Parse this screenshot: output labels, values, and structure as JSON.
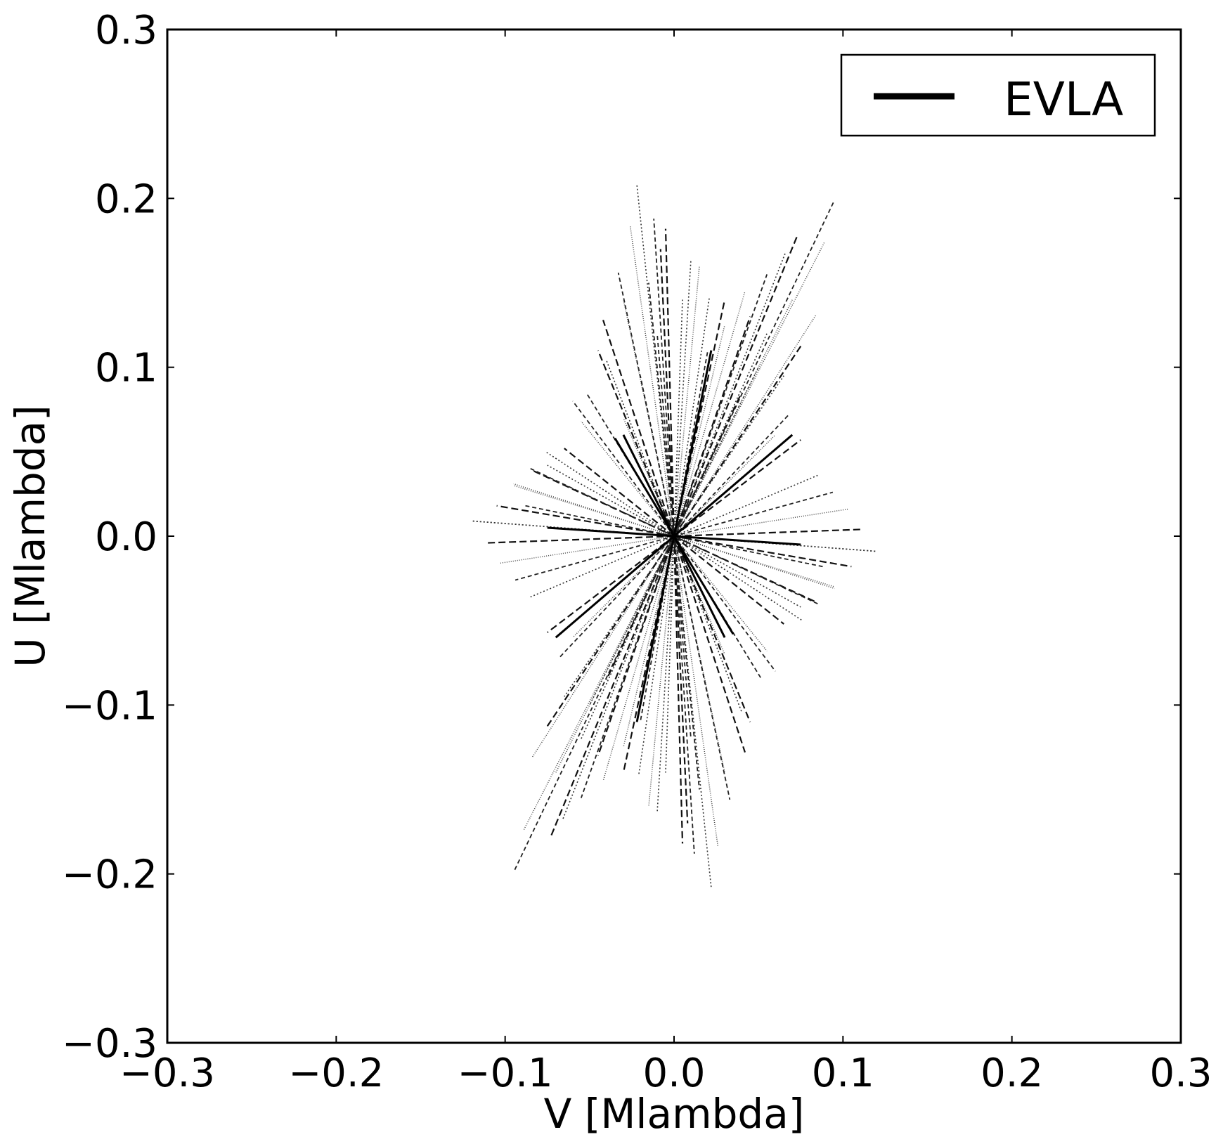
{
  "chart_data": {
    "type": "scatter",
    "title": "",
    "xlabel": "V [Mlambda]",
    "ylabel": "U [Mlambda]",
    "xlim": [
      -0.3,
      0.3
    ],
    "ylim": [
      -0.3,
      0.3
    ],
    "grid": false,
    "legend": {
      "placement": "top-right",
      "entries": [
        "EVLA"
      ]
    },
    "xticks": [
      {
        "value": -0.3,
        "label": "−0.3"
      },
      {
        "value": -0.2,
        "label": "−0.2"
      },
      {
        "value": -0.1,
        "label": "−0.1"
      },
      {
        "value": 0.0,
        "label": "0.0"
      },
      {
        "value": 0.1,
        "label": "0.1"
      },
      {
        "value": 0.2,
        "label": "0.2"
      },
      {
        "value": 0.3,
        "label": "0.3"
      }
    ],
    "yticks": [
      {
        "value": -0.3,
        "label": "−0.3"
      },
      {
        "value": -0.2,
        "label": "−0.2"
      },
      {
        "value": -0.1,
        "label": "−0.1"
      },
      {
        "value": 0.0,
        "label": "0.0"
      },
      {
        "value": 0.1,
        "label": "0.1"
      },
      {
        "value": 0.2,
        "label": "0.2"
      },
      {
        "value": 0.3,
        "label": "0.3"
      }
    ],
    "series": [
      {
        "name": "EVLA",
        "color": "#000000",
        "description": "radial uv-coverage tracks; each track mirrored through origin",
        "tracks": [
          {
            "v": -0.022,
            "u": 0.208
          },
          {
            "v": -0.012,
            "u": 0.188
          },
          {
            "v": -0.026,
            "u": 0.184
          },
          {
            "v": -0.005,
            "u": 0.182
          },
          {
            "v": 0.01,
            "u": 0.164
          },
          {
            "v": 0.095,
            "u": 0.199
          },
          {
            "v": 0.089,
            "u": 0.174
          },
          {
            "v": 0.073,
            "u": 0.178
          },
          {
            "v": 0.066,
            "u": 0.168
          },
          {
            "v": 0.055,
            "u": 0.155
          },
          {
            "v": 0.042,
            "u": 0.145
          },
          {
            "v": 0.03,
            "u": 0.14
          },
          {
            "v": 0.021,
            "u": 0.142
          },
          {
            "v": 0.02,
            "u": 0.11
          },
          {
            "v": 0.084,
            "u": 0.131
          },
          {
            "v": 0.076,
            "u": 0.114
          },
          {
            "v": 0.065,
            "u": 0.095
          },
          {
            "v": 0.068,
            "u": 0.072
          },
          {
            "v": 0.06,
            "u": 0.06
          },
          {
            "v": 0.075,
            "u": 0.057
          },
          {
            "v": 0.085,
            "u": 0.036
          },
          {
            "v": 0.094,
            "u": 0.026
          },
          {
            "v": 0.103,
            "u": 0.016
          },
          {
            "v": 0.111,
            "u": 0.004
          },
          {
            "v": 0.12,
            "u": -0.009
          },
          {
            "v": 0.088,
            "u": -0.018
          },
          {
            "v": 0.095,
            "u": -0.031
          },
          {
            "v": 0.084,
            "u": -0.039
          },
          {
            "v": 0.076,
            "u": -0.05
          },
          {
            "v": -0.033,
            "u": 0.156
          },
          {
            "v": -0.03,
            "u": 0.14
          },
          {
            "v": -0.042,
            "u": 0.128
          },
          {
            "v": -0.04,
            "u": 0.104
          },
          {
            "v": -0.052,
            "u": 0.085
          },
          {
            "v": -0.055,
            "u": 0.068
          },
          {
            "v": -0.065,
            "u": 0.052
          },
          {
            "v": -0.075,
            "u": 0.042
          },
          {
            "v": -0.085,
            "u": 0.04
          },
          {
            "v": -0.095,
            "u": 0.03
          },
          {
            "v": -0.105,
            "u": 0.018
          },
          {
            "v": -0.12,
            "u": 0.009
          },
          {
            "v": -0.01,
            "u": 0.12
          },
          {
            "v": 0.03,
            "u": 0.125
          },
          {
            "v": 0.045,
            "u": 0.13
          },
          {
            "v": 0.05,
            "u": 0.1
          },
          {
            "v": -0.02,
            "u": 0.095
          },
          {
            "v": -0.03,
            "u": 0.07
          },
          {
            "v": 0.04,
            "u": 0.085
          },
          {
            "v": 0.005,
            "u": 0.14
          },
          {
            "v": -0.015,
            "u": 0.15
          },
          {
            "v": 0.015,
            "u": 0.16
          },
          {
            "v": -0.045,
            "u": 0.11
          },
          {
            "v": 0.055,
            "u": 0.12
          },
          {
            "v": -0.06,
            "u": 0.08
          },
          {
            "v": 0.07,
            "u": 0.14
          },
          {
            "v": -0.008,
            "u": 0.17
          }
        ]
      }
    ]
  }
}
